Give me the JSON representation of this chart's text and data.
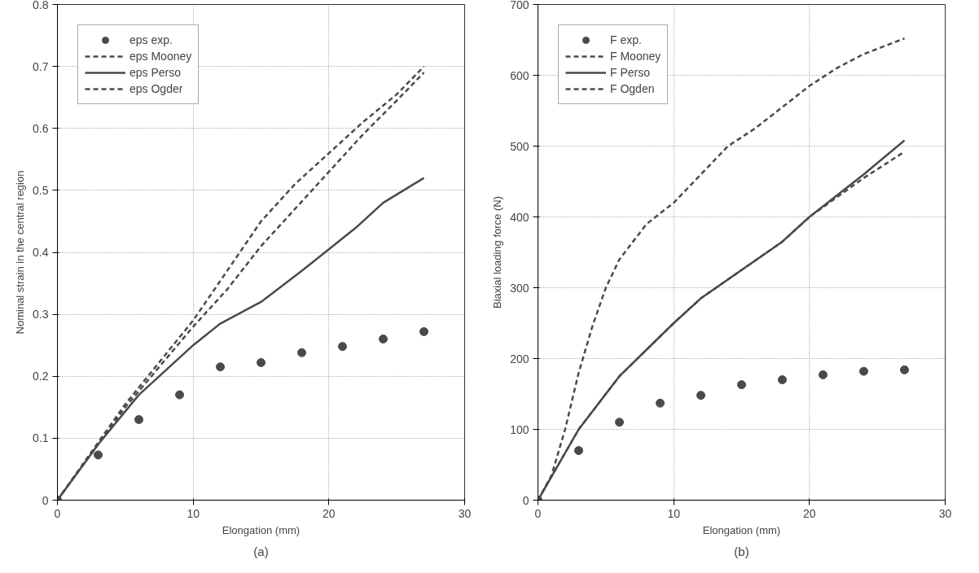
{
  "chart_data": [
    {
      "type": "line",
      "xlabel": "Elongation (mm)",
      "ylabel": "Nominal strain in the central region",
      "annotations": [
        "(a)"
      ],
      "xlim": [
        0,
        30
      ],
      "ylim": [
        0,
        0.8
      ],
      "xticks": [
        0,
        10,
        20,
        30
      ],
      "yticks": [
        0,
        0.1,
        0.2,
        0.3,
        0.4,
        0.5,
        0.6,
        0.7,
        0.8
      ],
      "grid": true,
      "legend": "top left",
      "series": [
        {
          "name": "eps exp.",
          "type": "scatter",
          "marker": "circle",
          "color": "#4a4a4a",
          "x": [
            0,
            3,
            6,
            9,
            12,
            15,
            18,
            21,
            24,
            27
          ],
          "values": [
            0,
            0.073,
            0.13,
            0.17,
            0.215,
            0.222,
            0.238,
            0.248,
            0.26,
            0.272
          ]
        },
        {
          "name": "eps Mooney",
          "line_style": "dashed",
          "color": "#4a4a4a",
          "x": [
            0,
            5,
            10,
            12.5,
            15,
            17.5,
            20,
            22.5,
            25,
            27
          ],
          "values": [
            0,
            0.155,
            0.29,
            0.37,
            0.45,
            0.51,
            0.56,
            0.61,
            0.655,
            0.7
          ]
        },
        {
          "name": "eps Perso",
          "line_style": "solid",
          "color": "#4a4a4a",
          "x": [
            0,
            3,
            6,
            10,
            12,
            15,
            18,
            20,
            22,
            24,
            27
          ],
          "values": [
            0,
            0.09,
            0.17,
            0.25,
            0.285,
            0.32,
            0.37,
            0.405,
            0.44,
            0.48,
            0.52
          ]
        },
        {
          "name": "eps Ogder",
          "line_style": "dashed",
          "color": "#4a4a4a",
          "x": [
            0,
            5,
            10,
            12.5,
            15,
            17.5,
            20,
            22.5,
            25,
            27
          ],
          "values": [
            0,
            0.15,
            0.28,
            0.34,
            0.41,
            0.47,
            0.53,
            0.59,
            0.645,
            0.69
          ]
        }
      ]
    },
    {
      "type": "line",
      "xlabel": "Elongation (mm)",
      "ylabel": "Biaxial loading force (N)",
      "annotations": [
        "(b)"
      ],
      "xlim": [
        0,
        30
      ],
      "ylim": [
        0,
        700
      ],
      "xticks": [
        0,
        10,
        20,
        30
      ],
      "yticks": [
        0,
        100,
        200,
        300,
        400,
        500,
        600,
        700
      ],
      "grid": true,
      "legend": "top left",
      "series": [
        {
          "name": "F exp.",
          "type": "scatter",
          "marker": "circle",
          "color": "#4a4a4a",
          "x": [
            0,
            3,
            6,
            9,
            12,
            15,
            18,
            21,
            24,
            27
          ],
          "values": [
            0,
            70,
            110,
            137,
            148,
            163,
            170,
            177,
            182,
            184
          ]
        },
        {
          "name": "F Mooney",
          "line_style": "dashed",
          "color": "#4a4a4a",
          "x": [
            0,
            3,
            6,
            10,
            12,
            15,
            18,
            20,
            24,
            27
          ],
          "values": [
            0,
            100,
            175,
            250,
            285,
            325,
            365,
            400,
            455,
            492
          ]
        },
        {
          "name": "F Perso",
          "line_style": "solid",
          "color": "#4a4a4a",
          "x": [
            0,
            3,
            6,
            10,
            12,
            15,
            18,
            20,
            24,
            27
          ],
          "values": [
            0,
            100,
            175,
            250,
            285,
            325,
            365,
            400,
            460,
            508
          ]
        },
        {
          "name": "F Ogden",
          "line_style": "dashed",
          "color": "#4a4a4a",
          "x": [
            0,
            1,
            2,
            3,
            4,
            5,
            6,
            8,
            10,
            12,
            14,
            16,
            18,
            20,
            22,
            24,
            27
          ],
          "values": [
            0,
            35,
            100,
            180,
            245,
            300,
            340,
            390,
            420,
            460,
            500,
            525,
            555,
            585,
            610,
            630,
            652
          ]
        }
      ]
    }
  ]
}
